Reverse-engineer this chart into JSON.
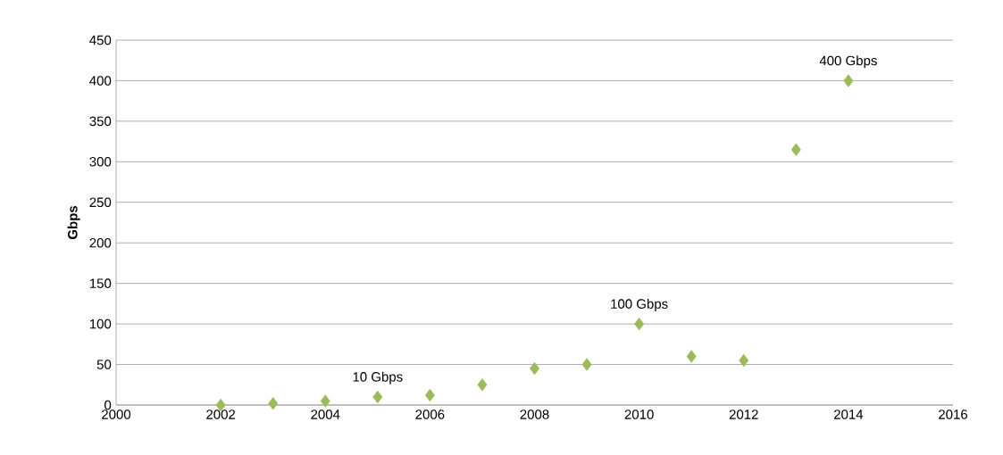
{
  "chart_data": {
    "type": "scatter",
    "ylabel": "Gbps",
    "x": [
      2002,
      2003,
      2004,
      2005,
      2006,
      2007,
      2008,
      2009,
      2010,
      2011,
      2012,
      2013,
      2014
    ],
    "values": [
      0,
      2,
      5,
      10,
      12,
      25,
      45,
      50,
      100,
      60,
      55,
      315,
      400
    ],
    "color": "#9bbb59",
    "marker": "diamond",
    "xlim": [
      2000,
      2016
    ],
    "xticks": [
      2000,
      2002,
      2004,
      2006,
      2008,
      2010,
      2012,
      2014,
      2016
    ],
    "ylim": [
      0,
      450
    ],
    "yticks": [
      0,
      50,
      100,
      150,
      200,
      250,
      300,
      350,
      400,
      450
    ],
    "grid": "y",
    "annotations": [
      {
        "text": "10 Gbps",
        "x": 2005,
        "y": 10
      },
      {
        "text": "100 Gbps",
        "x": 2010,
        "y": 100
      },
      {
        "text": "400 Gbps",
        "x": 2014,
        "y": 400
      }
    ]
  }
}
